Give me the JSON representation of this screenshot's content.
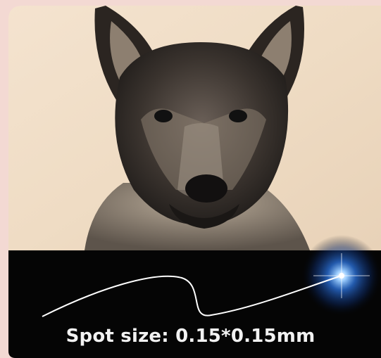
{
  "caption": "Spot size: 0.15*0.15mm"
}
